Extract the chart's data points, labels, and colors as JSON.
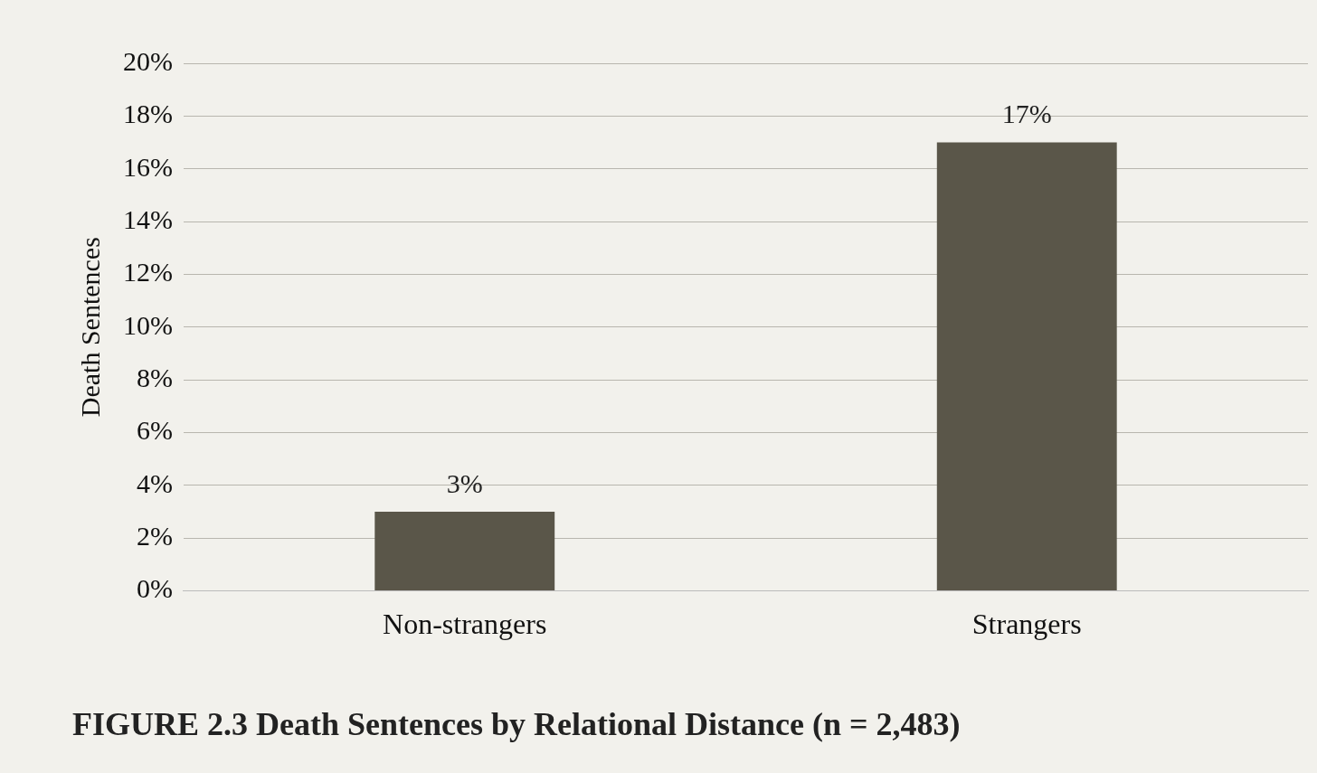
{
  "chart_data": {
    "type": "bar",
    "title": "FIGURE 2.3 Death Sentences by Relational Distance (n = 2,483)",
    "ylabel": "Death Sentences",
    "categories": [
      "Non-strangers",
      "Strangers"
    ],
    "values": [
      3,
      17
    ],
    "color": "#5a5649",
    "ylim": [
      0,
      20
    ],
    "yticks": [
      {
        "value": 0,
        "label": "0%"
      },
      {
        "value": 2,
        "label": "2%"
      },
      {
        "value": 4,
        "label": "4%"
      },
      {
        "value": 6,
        "label": "6%"
      },
      {
        "value": 8,
        "label": "8%"
      },
      {
        "value": 10,
        "label": "10%"
      },
      {
        "value": 12,
        "label": "12%"
      },
      {
        "value": 14,
        "label": "14%"
      },
      {
        "value": 16,
        "label": "16%"
      },
      {
        "value": 18,
        "label": "18%"
      },
      {
        "value": 20,
        "label": "20%"
      }
    ],
    "grid": "y",
    "data_labels": true,
    "value_labels": [
      "3%",
      "17%"
    ]
  }
}
